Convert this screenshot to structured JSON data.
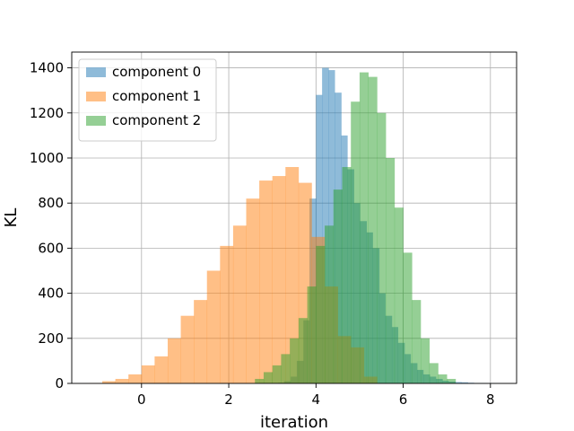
{
  "chart_data": {
    "type": "histogram",
    "title": "",
    "xlabel": "iteration",
    "ylabel": "KL",
    "xlim": [
      -1.6,
      8.6
    ],
    "ylim": [
      0,
      1470
    ],
    "xticks": [
      0,
      2,
      4,
      6,
      8
    ],
    "yticks": [
      0,
      200,
      400,
      600,
      800,
      1000,
      1200,
      1400
    ],
    "grid": true,
    "legend_position": "upper left",
    "alpha": 0.5,
    "series": [
      {
        "name": "component 0",
        "color": "#1f77b4",
        "bin_edges": [
          3.13,
          3.27,
          3.42,
          3.56,
          3.71,
          3.85,
          4.0,
          4.14,
          4.29,
          4.43,
          4.58,
          4.72,
          4.87,
          5.01,
          5.16,
          5.3,
          5.45,
          5.59,
          5.74,
          5.88,
          6.03,
          6.17,
          6.32,
          6.46,
          6.61,
          6.75,
          6.9,
          7.04,
          7.19,
          7.33,
          7.48,
          7.62,
          7.77,
          7.91,
          8.06,
          8.2
        ],
        "values": [
          3,
          10,
          30,
          100,
          280,
          820,
          1280,
          1400,
          1390,
          1290,
          1100,
          950,
          800,
          720,
          670,
          600,
          400,
          300,
          250,
          180,
          130,
          90,
          60,
          40,
          30,
          20,
          12,
          8,
          6,
          5,
          3,
          2,
          2,
          1,
          1
        ]
      },
      {
        "name": "component 1",
        "color": "#ff7f0e",
        "bin_edges": [
          -1.2,
          -0.9,
          -0.6,
          -0.3,
          0.0,
          0.3,
          0.6,
          0.9,
          1.2,
          1.5,
          1.8,
          2.1,
          2.4,
          2.7,
          3.0,
          3.3,
          3.6,
          3.9,
          4.2,
          4.5,
          4.8,
          5.1,
          5.4
        ],
        "values": [
          2,
          10,
          20,
          40,
          80,
          120,
          200,
          300,
          370,
          500,
          610,
          700,
          820,
          900,
          920,
          960,
          890,
          650,
          430,
          210,
          160,
          30
        ]
      },
      {
        "name": "component 2",
        "color": "#2ca02c",
        "bin_edges": [
          2.6,
          2.8,
          3.0,
          3.2,
          3.4,
          3.6,
          3.8,
          4.0,
          4.2,
          4.4,
          4.6,
          4.8,
          5.0,
          5.2,
          5.4,
          5.6,
          5.8,
          6.0,
          6.2,
          6.4,
          6.6,
          6.8,
          7.0,
          7.2
        ],
        "values": [
          20,
          50,
          80,
          130,
          200,
          290,
          430,
          610,
          700,
          860,
          960,
          1250,
          1380,
          1360,
          1200,
          1000,
          780,
          580,
          370,
          200,
          90,
          40,
          20
        ]
      }
    ]
  }
}
